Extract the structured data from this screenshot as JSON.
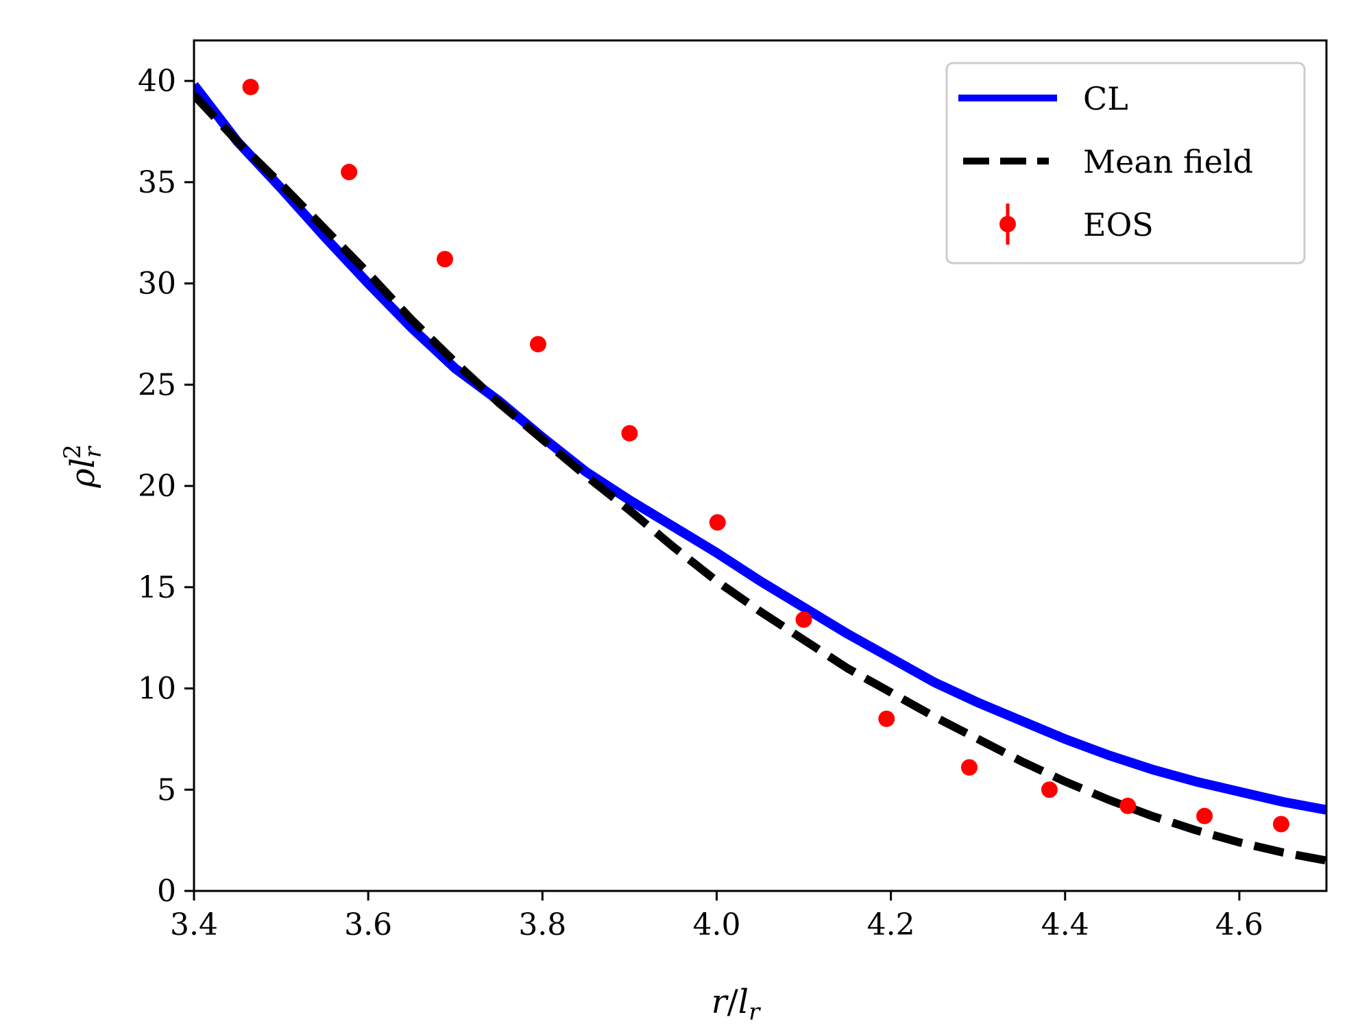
{
  "chart_data": {
    "type": "line",
    "title": "",
    "xlabel": "r/l_r",
    "ylabel": "ρl_r^2",
    "xlim": [
      3.4,
      4.7
    ],
    "ylim": [
      0,
      42
    ],
    "xticks": [
      3.4,
      3.6,
      3.8,
      4.0,
      4.2,
      4.4,
      4.6
    ],
    "xtick_labels": [
      "3.4",
      "3.6",
      "3.8",
      "4.0",
      "4.2",
      "4.4",
      "4.6"
    ],
    "yticks": [
      0,
      5,
      10,
      15,
      20,
      25,
      30,
      35,
      40
    ],
    "ytick_labels": [
      "0",
      "5",
      "10",
      "15",
      "20",
      "25",
      "30",
      "35",
      "40"
    ],
    "grid": false,
    "legend_position": "top-right",
    "series": [
      {
        "name": "CL",
        "style": "solid",
        "color": "#0000ff",
        "x": [
          3.4,
          3.45,
          3.5,
          3.55,
          3.6,
          3.65,
          3.7,
          3.75,
          3.8,
          3.85,
          3.9,
          3.95,
          4.0,
          4.05,
          4.1,
          4.15,
          4.2,
          4.25,
          4.3,
          4.35,
          4.4,
          4.45,
          4.5,
          4.55,
          4.6,
          4.65,
          4.7
        ],
        "y": [
          39.8,
          37.0,
          34.7,
          32.3,
          30.0,
          27.8,
          25.8,
          24.2,
          22.4,
          20.7,
          19.3,
          18.0,
          16.7,
          15.3,
          14.0,
          12.7,
          11.5,
          10.3,
          9.3,
          8.4,
          7.5,
          6.7,
          6.0,
          5.4,
          4.9,
          4.4,
          4.0
        ]
      },
      {
        "name": "Mean field",
        "style": "dashed",
        "color": "#000000",
        "x": [
          3.4,
          3.45,
          3.5,
          3.55,
          3.6,
          3.65,
          3.7,
          3.75,
          3.8,
          3.85,
          3.9,
          3.95,
          4.0,
          4.05,
          4.1,
          4.15,
          4.2,
          4.25,
          4.3,
          4.35,
          4.4,
          4.45,
          4.5,
          4.55,
          4.6,
          4.65,
          4.7
        ],
        "y": [
          39.3,
          37.0,
          34.9,
          32.7,
          30.5,
          28.2,
          26.1,
          24.1,
          22.3,
          20.5,
          18.8,
          17.0,
          15.3,
          13.8,
          12.4,
          11.0,
          9.8,
          8.6,
          7.5,
          6.4,
          5.4,
          4.5,
          3.7,
          3.0,
          2.4,
          1.9,
          1.5
        ]
      },
      {
        "name": "EOS",
        "style": "markers",
        "color": "#ff0000",
        "x": [
          3.465,
          3.578,
          3.688,
          3.795,
          3.9,
          4.001,
          4.1,
          4.195,
          4.29,
          4.382,
          4.472,
          4.56,
          4.648
        ],
        "y": [
          39.7,
          35.5,
          31.2,
          27.0,
          22.6,
          18.2,
          13.4,
          8.5,
          6.1,
          5.0,
          4.2,
          3.7,
          3.3
        ]
      }
    ]
  }
}
